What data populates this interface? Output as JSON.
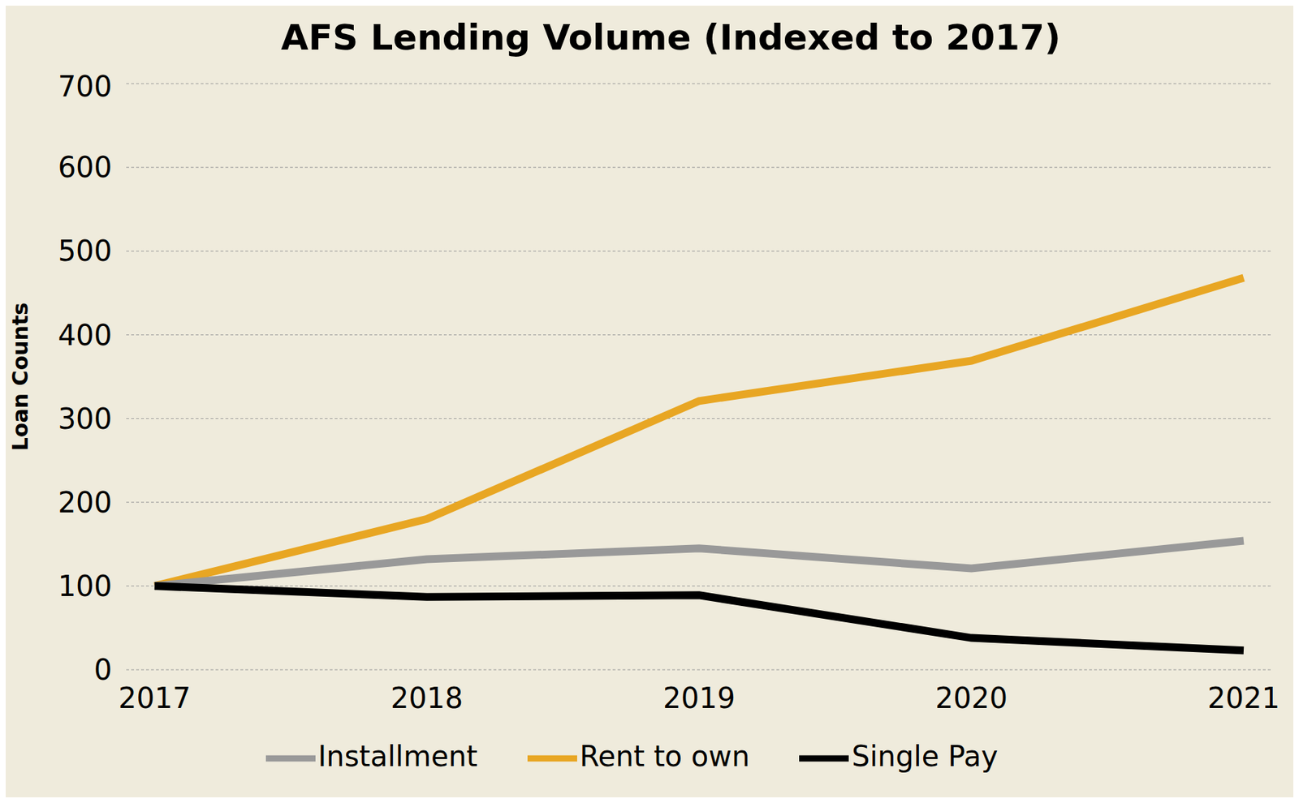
{
  "chart_data": {
    "type": "line",
    "title": "AFS Lending Volume (Indexed to 2017)",
    "y_label": "Loan Counts",
    "categories": [
      "2017",
      "2018",
      "2019",
      "2020",
      "2021"
    ],
    "series": [
      {
        "name": "Rent to own",
        "color": "#E8A623",
        "values": [
          100,
          180,
          321,
          369,
          468
        ]
      },
      {
        "name": "Installment",
        "color": "#999999",
        "values": [
          100,
          132,
          145,
          121,
          154
        ]
      },
      {
        "name": "Single Pay",
        "color": "#000000",
        "values": [
          100,
          87,
          89,
          38,
          23
        ]
      }
    ],
    "ylim": [
      0,
      700
    ],
    "yticks": [
      0,
      100,
      200,
      300,
      400,
      500,
      600,
      700
    ],
    "grid": true,
    "legend": "bottom"
  }
}
